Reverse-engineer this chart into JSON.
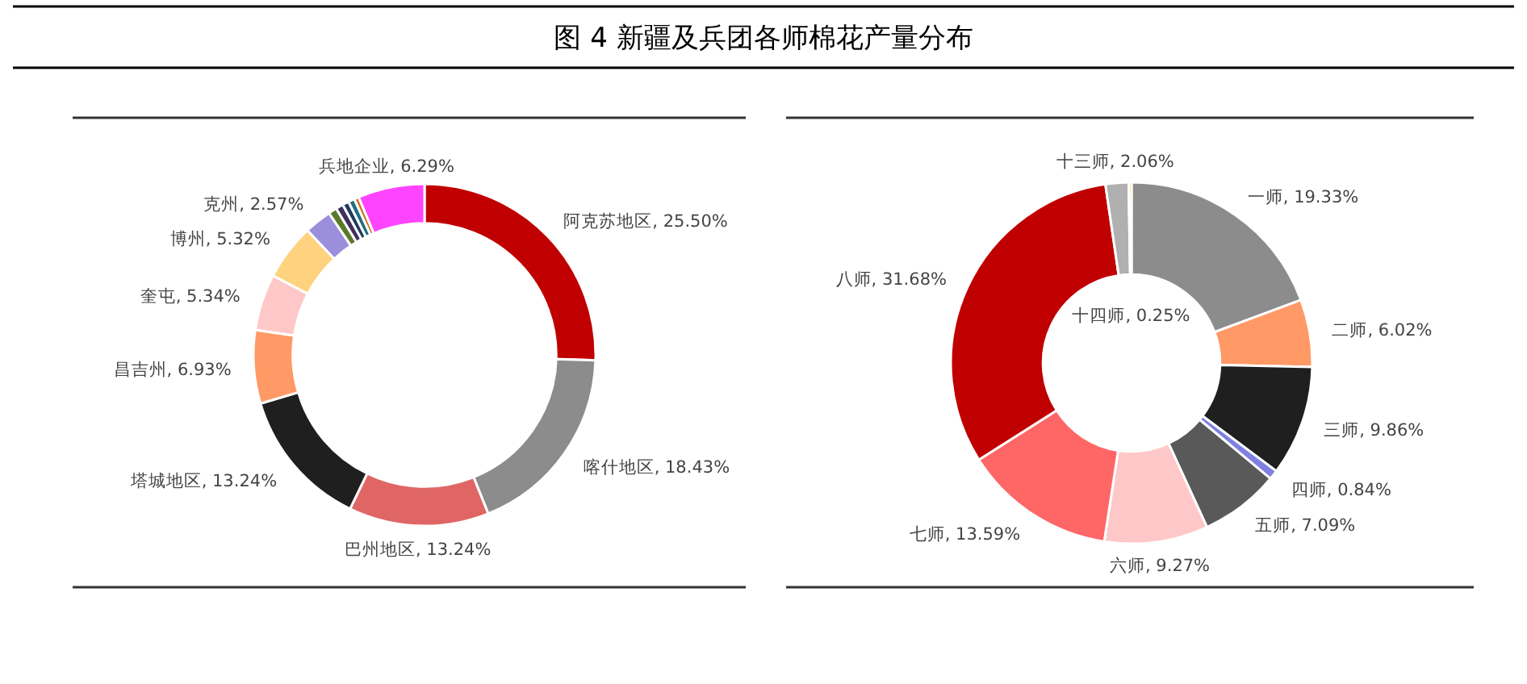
{
  "chart_data": [
    {
      "type": "donut",
      "title": "图 4 新疆及兵团各师棉花产量分布",
      "categories": [
        "阿克苏地区",
        "喀什地区",
        "巴州地区",
        "塔城地区",
        "昌吉州",
        "奎屯",
        "博州",
        "克州",
        null,
        null,
        null,
        null,
        null,
        "兵地企业"
      ],
      "values": [
        25.5,
        18.43,
        13.24,
        13.24,
        6.93,
        5.34,
        5.32,
        2.57,
        0.8,
        0.7,
        0.6,
        0.6,
        0.44,
        6.29
      ],
      "value_labels": [
        "25.50%",
        "18.43%",
        "13.24%",
        "13.24%",
        "6.93%",
        "5.34%",
        "5.32%",
        "2.57%",
        null,
        null,
        null,
        null,
        null,
        "6.29%"
      ],
      "colors": [
        "#c00000",
        "#8c8c8c",
        "#e06666",
        "#1f1f1f",
        "#ff9966",
        "#ffc8c8",
        "#ffd27f",
        "#9b8fdc",
        "#5a7a2a",
        "#3f2f5f",
        "#1f3a5f",
        "#1f6f7f",
        "#d07020",
        "#ff44ff"
      ]
    },
    {
      "type": "donut",
      "categories": [
        "一师",
        "二师",
        "三师",
        "四师",
        "五师",
        "六师",
        "七师",
        "八师",
        "十三师",
        "十四师"
      ],
      "values": [
        19.33,
        6.02,
        9.86,
        0.84,
        7.09,
        9.27,
        13.59,
        31.68,
        2.06,
        0.25
      ],
      "value_labels": [
        "19.33%",
        "6.02%",
        "9.86%",
        "0.84%",
        "7.09%",
        "9.27%",
        "13.59%",
        "31.68%",
        "2.06%",
        "0.25%"
      ],
      "colors": [
        "#8c8c8c",
        "#ff9966",
        "#1f1f1f",
        "#8080e0",
        "#595959",
        "#ffc8c8",
        "#ff6666",
        "#c00000",
        "#b0b0b0",
        "#ffc000"
      ]
    }
  ]
}
